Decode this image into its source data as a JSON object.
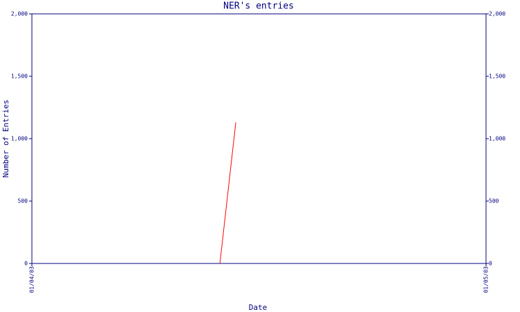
{
  "chart_data": {
    "type": "line",
    "title": "NER's entries",
    "x_label": "Date",
    "y_label": "Number of Entries",
    "xlim": [
      0,
      1
    ],
    "xticks": [
      {
        "value": 0,
        "label": "01/04/03"
      },
      {
        "value": 1,
        "label": "01/05/03"
      }
    ],
    "ylim": [
      0,
      2000
    ],
    "yticks": [
      0,
      500,
      {
        "value": 1000,
        "label": "1,000"
      },
      {
        "value": 1500,
        "label": "1,500"
      },
      {
        "value": 2000,
        "label": "2,000"
      }
    ],
    "x": [
      0.414,
      0.449
    ],
    "series": [
      {
        "color": "#ff0000",
        "values": [
          0,
          1130
        ]
      }
    ],
    "axis_color": "#000080",
    "right_axis": true
  }
}
